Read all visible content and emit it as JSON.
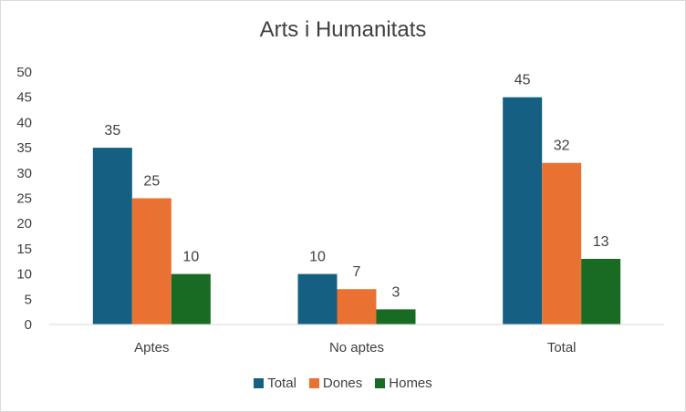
{
  "chart_data": {
    "type": "bar",
    "title": "Arts i Humanitats",
    "categories": [
      "Aptes",
      "No aptes",
      "Total"
    ],
    "series": [
      {
        "name": "Total",
        "values": [
          35,
          10,
          45
        ],
        "color": "#156082"
      },
      {
        "name": "Dones",
        "values": [
          25,
          7,
          32
        ],
        "color": "#E97132"
      },
      {
        "name": "Homes",
        "values": [
          10,
          3,
          13
        ],
        "color": "#196B24"
      }
    ],
    "ylim": [
      0,
      50
    ],
    "yticks": [
      "0",
      "5",
      "10",
      "15",
      "20",
      "25",
      "30",
      "35",
      "40",
      "45",
      "50"
    ],
    "grid": false,
    "legend_position": "bottom",
    "data_labels": true
  }
}
